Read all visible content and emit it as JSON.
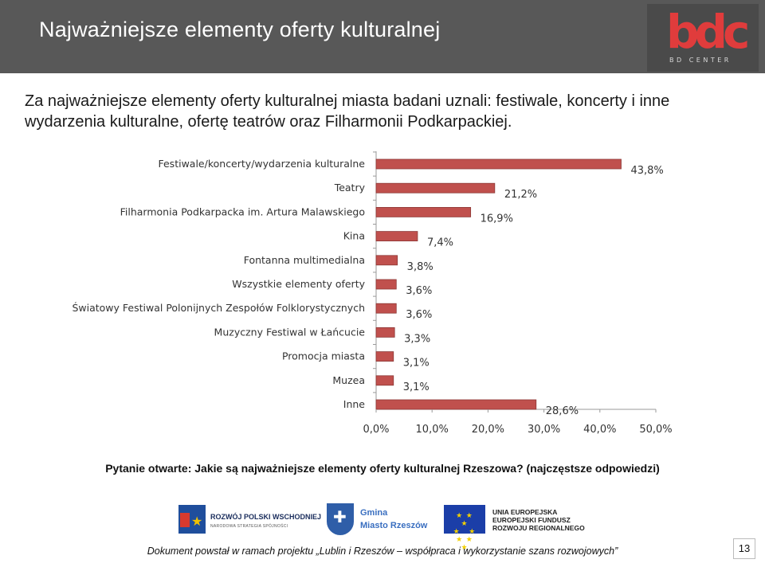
{
  "slide": {
    "title": "Najważniejsze elementy oferty kulturalnej",
    "intro": "Za najważniejsze elementy oferty kulturalnej miasta badani uznali: festiwale, koncerty i inne wydarzenia kulturalne, ofertę teatrów oraz Filharmonii Podkarpackiej.",
    "question": "Pytanie otwarte: Jakie są najważniejsze elementy oferty kulturalnej Rzeszowa? (najczęstsze odpowiedzi)",
    "footer": "Dokument powstał w ramach projektu „Lublin i Rzeszów – współpraca i wykorzystanie szans rozwojowych”",
    "page_number": "13"
  },
  "logos": {
    "bdc_word": "bdc",
    "bdc_sub": "BD CENTER",
    "rpw_name": "ROZWÓJ POLSKI WSCHODNIEJ",
    "rpw_sub": "NARODOWA STRATEGIA SPÓJNOŚCI",
    "gmina_line1": "Gmina",
    "gmina_line2": "Miasto Rzeszów",
    "eu_line1": "UNIA EUROPEJSKA",
    "eu_line2": "EUROPEJSKI FUNDUSZ",
    "eu_line3": "ROZWOJU REGIONALNEGO"
  },
  "colors": {
    "header_bg": "#585858",
    "bar_fill": "#c0504d",
    "bar_stroke": "#8c3836",
    "logo_red": "#e03c3c"
  },
  "chart_data": {
    "type": "bar",
    "orientation": "horizontal",
    "categories": [
      "Festiwale/koncerty/wydarzenia kulturalne",
      "Teatry",
      "Filharmonia Podkarpacka im. Artura Malawskiego",
      "Kina",
      "Fontanna multimedialna",
      "Wszystkie elementy oferty",
      "Światowy Festiwal Polonijnych Zespołów Folklorystycznych",
      "Muzyczny Festiwal w Łańcucie",
      "Promocja miasta",
      "Muzea",
      "Inne"
    ],
    "values": [
      43.8,
      21.2,
      16.9,
      7.4,
      3.8,
      3.6,
      3.6,
      3.3,
      3.1,
      3.1,
      28.6
    ],
    "value_labels": [
      "43,8%",
      "21,2%",
      "16,9%",
      "7,4%",
      "3,8%",
      "3,6%",
      "3,6%",
      "3,3%",
      "3,1%",
      "3,1%",
      "28,6%"
    ],
    "xlim": [
      0,
      50
    ],
    "xticks": [
      0,
      10,
      20,
      30,
      40,
      50
    ],
    "xtick_labels": [
      "0,0%",
      "10,0%",
      "20,0%",
      "30,0%",
      "40,0%",
      "50,0%"
    ],
    "grid": false,
    "legend": "none"
  }
}
